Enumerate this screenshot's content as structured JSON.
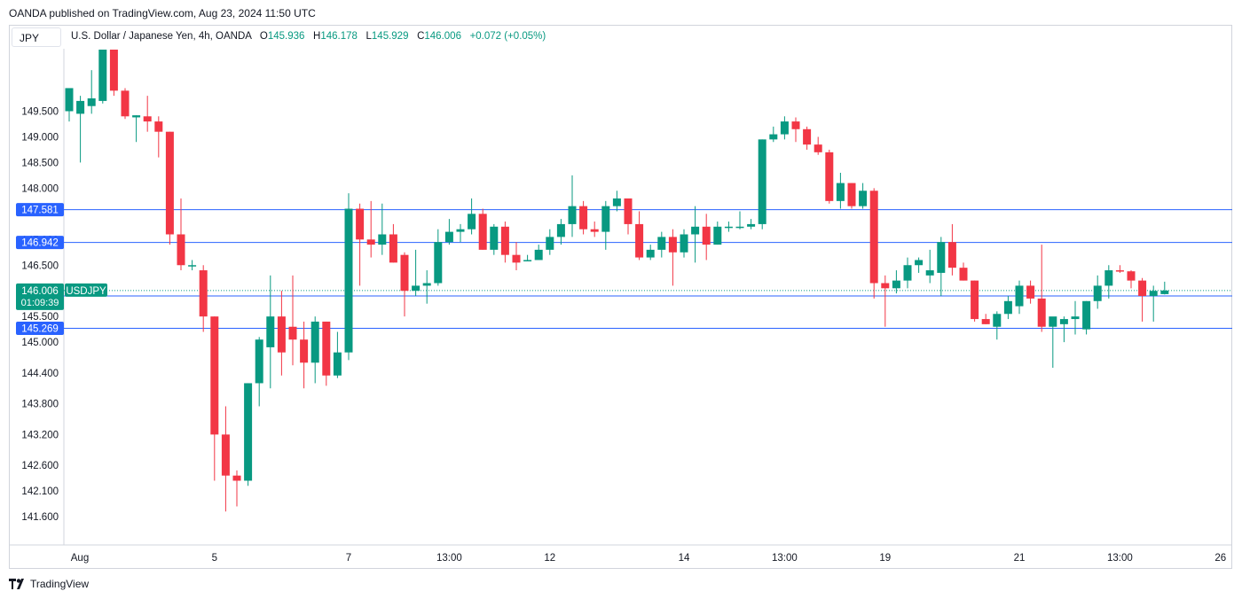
{
  "header": {
    "published": "OANDA published on TradingView.com, Aug 23, 2024 11:50 UTC"
  },
  "symbol_box": "JPY",
  "legend": {
    "name": "U.S. Dollar / Japanese Yen, 4h, OANDA",
    "o_label": "O",
    "o": "145.936",
    "h_label": "H",
    "h": "146.178",
    "l_label": "L",
    "l": "145.929",
    "c_label": "C",
    "c": "146.006",
    "change": "+0.072 (+0.05%)"
  },
  "footer": {
    "brand": "TradingView"
  },
  "colors": {
    "up": "#089981",
    "down": "#f23645",
    "hline": "#2962ff",
    "grid": "#e0e3eb"
  },
  "chart_data": {
    "type": "candlestick",
    "interval": "4h",
    "ylim": [
      141.1,
      150.7
    ],
    "y_ticks": [
      "141.600",
      "142.100",
      "142.600",
      "143.200",
      "143.800",
      "144.400",
      "145.000",
      "145.500",
      "146.500",
      "147.000",
      "148.000",
      "148.500",
      "149.000",
      "149.500"
    ],
    "x_ticks": [
      {
        "label": "Aug",
        "i": 0
      },
      {
        "label": "5",
        "i": 13
      },
      {
        "label": "7",
        "i": 25
      },
      {
        "label": "13:00",
        "i": 34
      },
      {
        "label": "12",
        "i": 43
      },
      {
        "label": "14",
        "i": 55
      },
      {
        "label": "13:00",
        "i": 64
      },
      {
        "label": "19",
        "i": 73
      },
      {
        "label": "21",
        "i": 85
      },
      {
        "label": "13:00",
        "i": 94
      },
      {
        "label": "26",
        "i": 103
      }
    ],
    "horizontal_lines": [
      {
        "value": 147.581,
        "label": "147.581"
      },
      {
        "value": 146.942,
        "label": "146.942"
      },
      {
        "value": 145.901,
        "label": "145.901"
      },
      {
        "value": 145.269,
        "label": "145.269"
      }
    ],
    "current_price": {
      "value": 146.006,
      "price_label": "146.006",
      "countdown": "01:09:39",
      "symbol": "USDJPY"
    },
    "candles": [
      {
        "o": 149.5,
        "h": 149.9,
        "l": 149.3,
        "c": 149.95
      },
      {
        "o": 149.45,
        "h": 149.8,
        "l": 148.5,
        "c": 149.7
      },
      {
        "o": 149.6,
        "h": 150.3,
        "l": 149.45,
        "c": 149.75
      },
      {
        "o": 149.7,
        "h": 150.7,
        "l": 149.65,
        "c": 150.7
      },
      {
        "o": 150.7,
        "h": 150.7,
        "l": 149.8,
        "c": 149.9
      },
      {
        "o": 149.9,
        "h": 149.95,
        "l": 149.35,
        "c": 149.4
      },
      {
        "o": 149.38,
        "h": 149.42,
        "l": 148.9,
        "c": 149.42
      },
      {
        "o": 149.4,
        "h": 149.8,
        "l": 149.1,
        "c": 149.3
      },
      {
        "o": 149.3,
        "h": 149.4,
        "l": 148.6,
        "c": 149.1
      },
      {
        "o": 149.1,
        "h": 149.1,
        "l": 146.9,
        "c": 147.1
      },
      {
        "o": 147.1,
        "h": 147.8,
        "l": 146.4,
        "c": 146.5
      },
      {
        "o": 146.5,
        "h": 146.6,
        "l": 146.4,
        "c": 146.5
      },
      {
        "o": 146.4,
        "h": 146.5,
        "l": 145.2,
        "c": 145.5
      },
      {
        "o": 145.5,
        "h": 145.5,
        "l": 142.3,
        "c": 143.2
      },
      {
        "o": 143.2,
        "h": 143.75,
        "l": 141.7,
        "c": 142.4
      },
      {
        "o": 142.4,
        "h": 142.5,
        "l": 141.8,
        "c": 142.3
      },
      {
        "o": 142.3,
        "h": 144.2,
        "l": 142.2,
        "c": 144.2
      },
      {
        "o": 144.2,
        "h": 145.1,
        "l": 143.75,
        "c": 145.05
      },
      {
        "o": 144.9,
        "h": 146.3,
        "l": 144.1,
        "c": 145.5
      },
      {
        "o": 145.5,
        "h": 146.0,
        "l": 144.35,
        "c": 144.8
      },
      {
        "o": 145.3,
        "h": 146.3,
        "l": 144.55,
        "c": 145.05
      },
      {
        "o": 145.05,
        "h": 145.4,
        "l": 144.1,
        "c": 144.6
      },
      {
        "o": 144.6,
        "h": 145.5,
        "l": 144.2,
        "c": 145.4
      },
      {
        "o": 145.4,
        "h": 145.4,
        "l": 144.15,
        "c": 144.35
      },
      {
        "o": 144.35,
        "h": 145.2,
        "l": 144.3,
        "c": 144.8
      },
      {
        "o": 144.8,
        "h": 147.9,
        "l": 144.65,
        "c": 147.6
      },
      {
        "o": 147.6,
        "h": 147.7,
        "l": 146.1,
        "c": 147.0
      },
      {
        "o": 147.0,
        "h": 147.75,
        "l": 146.65,
        "c": 146.9
      },
      {
        "o": 146.9,
        "h": 147.7,
        "l": 146.7,
        "c": 147.1
      },
      {
        "o": 147.1,
        "h": 147.3,
        "l": 146.55,
        "c": 146.55
      },
      {
        "o": 146.7,
        "h": 146.75,
        "l": 145.5,
        "c": 146.0
      },
      {
        "o": 146.0,
        "h": 146.8,
        "l": 145.9,
        "c": 146.1
      },
      {
        "o": 146.1,
        "h": 146.4,
        "l": 145.75,
        "c": 146.15
      },
      {
        "o": 146.15,
        "h": 147.2,
        "l": 146.1,
        "c": 146.95
      },
      {
        "o": 146.95,
        "h": 147.4,
        "l": 146.9,
        "c": 147.15
      },
      {
        "o": 147.15,
        "h": 147.3,
        "l": 146.95,
        "c": 147.2
      },
      {
        "o": 147.2,
        "h": 147.8,
        "l": 147.1,
        "c": 147.5
      },
      {
        "o": 147.5,
        "h": 147.6,
        "l": 146.8,
        "c": 146.8
      },
      {
        "o": 146.8,
        "h": 147.3,
        "l": 146.7,
        "c": 147.25
      },
      {
        "o": 147.25,
        "h": 147.35,
        "l": 146.55,
        "c": 146.7
      },
      {
        "o": 146.7,
        "h": 146.95,
        "l": 146.4,
        "c": 146.55
      },
      {
        "o": 146.6,
        "h": 146.7,
        "l": 146.58,
        "c": 146.6
      },
      {
        "o": 146.6,
        "h": 146.9,
        "l": 146.65,
        "c": 146.8
      },
      {
        "o": 146.8,
        "h": 147.2,
        "l": 146.7,
        "c": 147.05
      },
      {
        "o": 147.05,
        "h": 147.4,
        "l": 146.9,
        "c": 147.3
      },
      {
        "o": 147.3,
        "h": 148.25,
        "l": 147.05,
        "c": 147.65
      },
      {
        "o": 147.65,
        "h": 147.75,
        "l": 147.1,
        "c": 147.2
      },
      {
        "o": 147.2,
        "h": 147.35,
        "l": 147.05,
        "c": 147.15
      },
      {
        "o": 147.15,
        "h": 147.75,
        "l": 146.8,
        "c": 147.65
      },
      {
        "o": 147.65,
        "h": 147.95,
        "l": 147.55,
        "c": 147.8
      },
      {
        "o": 147.8,
        "h": 147.8,
        "l": 147.1,
        "c": 147.3
      },
      {
        "o": 147.3,
        "h": 147.55,
        "l": 146.6,
        "c": 146.65
      },
      {
        "o": 146.65,
        "h": 146.9,
        "l": 146.6,
        "c": 146.8
      },
      {
        "o": 146.8,
        "h": 147.15,
        "l": 146.65,
        "c": 147.05
      },
      {
        "o": 147.05,
        "h": 147.2,
        "l": 146.1,
        "c": 146.75
      },
      {
        "o": 146.75,
        "h": 147.2,
        "l": 146.65,
        "c": 147.1
      },
      {
        "o": 147.1,
        "h": 147.65,
        "l": 146.55,
        "c": 147.25
      },
      {
        "o": 147.25,
        "h": 147.5,
        "l": 146.6,
        "c": 146.9
      },
      {
        "o": 146.9,
        "h": 147.35,
        "l": 146.9,
        "c": 147.25
      },
      {
        "o": 147.25,
        "h": 147.35,
        "l": 147.15,
        "c": 147.25
      },
      {
        "o": 147.25,
        "h": 147.55,
        "l": 147.2,
        "c": 147.25
      },
      {
        "o": 147.25,
        "h": 147.4,
        "l": 147.2,
        "c": 147.3
      },
      {
        "o": 147.3,
        "h": 148.95,
        "l": 147.2,
        "c": 148.95
      },
      {
        "o": 148.95,
        "h": 149.2,
        "l": 148.9,
        "c": 149.05
      },
      {
        "o": 149.05,
        "h": 149.4,
        "l": 148.95,
        "c": 149.3
      },
      {
        "o": 149.3,
        "h": 149.38,
        "l": 148.9,
        "c": 149.15
      },
      {
        "o": 149.15,
        "h": 149.2,
        "l": 148.75,
        "c": 148.85
      },
      {
        "o": 148.85,
        "h": 149.0,
        "l": 148.65,
        "c": 148.7
      },
      {
        "o": 148.7,
        "h": 148.75,
        "l": 147.7,
        "c": 147.75
      },
      {
        "o": 147.75,
        "h": 148.3,
        "l": 147.6,
        "c": 148.1
      },
      {
        "o": 148.1,
        "h": 148.1,
        "l": 147.6,
        "c": 147.65
      },
      {
        "o": 147.65,
        "h": 148.1,
        "l": 147.6,
        "c": 147.95
      },
      {
        "o": 147.95,
        "h": 148.0,
        "l": 145.85,
        "c": 146.15
      },
      {
        "o": 146.15,
        "h": 146.3,
        "l": 145.3,
        "c": 146.05
      },
      {
        "o": 146.05,
        "h": 146.4,
        "l": 145.95,
        "c": 146.2
      },
      {
        "o": 146.2,
        "h": 146.65,
        "l": 146.05,
        "c": 146.5
      },
      {
        "o": 146.5,
        "h": 146.65,
        "l": 146.35,
        "c": 146.6
      },
      {
        "o": 146.3,
        "h": 146.8,
        "l": 146.15,
        "c": 146.4
      },
      {
        "o": 146.35,
        "h": 147.05,
        "l": 145.9,
        "c": 146.95
      },
      {
        "o": 146.95,
        "h": 147.3,
        "l": 146.3,
        "c": 146.45
      },
      {
        "o": 146.45,
        "h": 146.55,
        "l": 146.2,
        "c": 146.2
      },
      {
        "o": 146.2,
        "h": 146.2,
        "l": 145.4,
        "c": 145.45
      },
      {
        "o": 145.45,
        "h": 145.55,
        "l": 145.35,
        "c": 145.35
      },
      {
        "o": 145.3,
        "h": 145.6,
        "l": 145.05,
        "c": 145.55
      },
      {
        "o": 145.55,
        "h": 145.9,
        "l": 145.45,
        "c": 145.8
      },
      {
        "o": 145.7,
        "h": 146.2,
        "l": 145.55,
        "c": 146.1
      },
      {
        "o": 146.1,
        "h": 146.2,
        "l": 145.75,
        "c": 145.85
      },
      {
        "o": 145.85,
        "h": 146.9,
        "l": 145.2,
        "c": 145.3
      },
      {
        "o": 145.3,
        "h": 145.45,
        "l": 144.5,
        "c": 145.5
      },
      {
        "o": 145.35,
        "h": 145.5,
        "l": 145.0,
        "c": 145.45
      },
      {
        "o": 145.45,
        "h": 145.8,
        "l": 145.15,
        "c": 145.5
      },
      {
        "o": 145.25,
        "h": 145.8,
        "l": 145.15,
        "c": 145.8
      },
      {
        "o": 145.8,
        "h": 146.3,
        "l": 145.65,
        "c": 146.1
      },
      {
        "o": 146.1,
        "h": 146.5,
        "l": 145.85,
        "c": 146.4
      },
      {
        "o": 146.4,
        "h": 146.5,
        "l": 146.35,
        "c": 146.38
      },
      {
        "o": 146.38,
        "h": 146.4,
        "l": 146.05,
        "c": 146.2
      },
      {
        "o": 146.2,
        "h": 146.25,
        "l": 145.4,
        "c": 145.9
      },
      {
        "o": 145.9,
        "h": 146.1,
        "l": 145.4,
        "c": 146.0
      },
      {
        "o": 145.936,
        "h": 146.178,
        "l": 145.929,
        "c": 146.006
      }
    ]
  }
}
